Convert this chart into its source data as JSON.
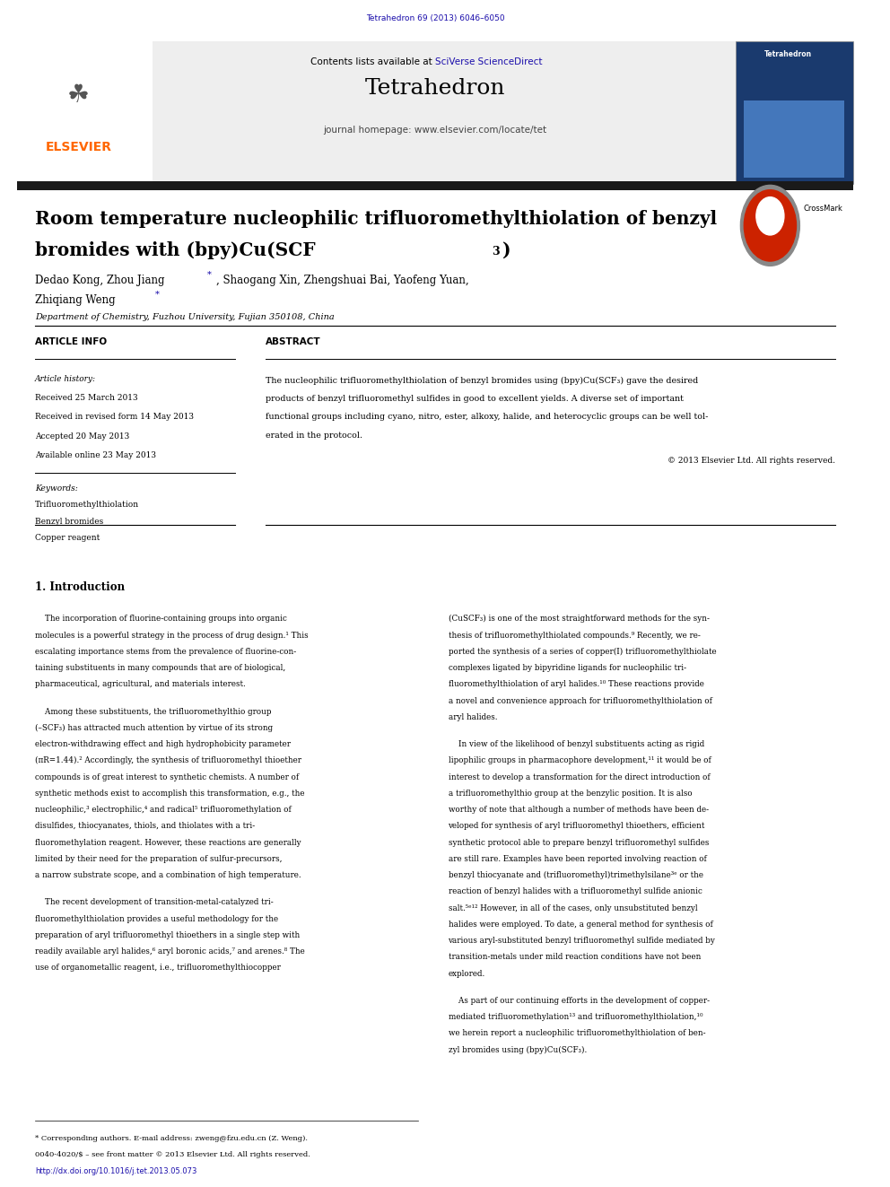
{
  "journal_ref": "Tetrahedron 69 (2013) 6046–6050",
  "journal_ref_color": "#1a0dab",
  "journal_name": "Tetrahedron",
  "contents_text": "Contents lists available at ",
  "sciverse_text": "SciVerse ScienceDirect",
  "sciverse_color": "#1a0dab",
  "homepage_text": "journal homepage: www.elsevier.com/locate/tet",
  "elsevier_color": "#FF6600",
  "elsevier_text": "ELSEVIER",
  "article_title_line1": "Room temperature nucleophilic trifluoromethylthiolation of benzyl",
  "article_title_line2": "bromides with (bpy)Cu(SCF",
  "article_title_subscript": "3",
  "article_title_end": ")",
  "affiliation": "Department of Chemistry, Fuzhou University, Fujian 350108, China",
  "article_info_header": "ARTICLE INFO",
  "abstract_header": "ABSTRACT",
  "article_history_label": "Article history:",
  "received": "Received 25 March 2013",
  "received_revised": "Received in revised form 14 May 2013",
  "accepted": "Accepted 20 May 2013",
  "available": "Available online 23 May 2013",
  "keywords_label": "Keywords:",
  "kw1": "Trifluoromethylthiolation",
  "kw2": "Benzyl bromides",
  "kw3": "Copper reagent",
  "copyright": "© 2013 Elsevier Ltd. All rights reserved.",
  "intro_heading": "1. Introduction",
  "footnote_corresponding": "* Corresponding authors. E-mail address: zweng@fzu.edu.cn (Z. Weng).",
  "footnote_issn": "0040-4020/$ – see front matter © 2013 Elsevier Ltd. All rights reserved.",
  "footnote_doi": "http://dx.doi.org/10.1016/j.tet.2013.05.073",
  "bg_color": "#ffffff",
  "thick_bar_color": "#1a1a1a",
  "link_color": "#1a0dab"
}
